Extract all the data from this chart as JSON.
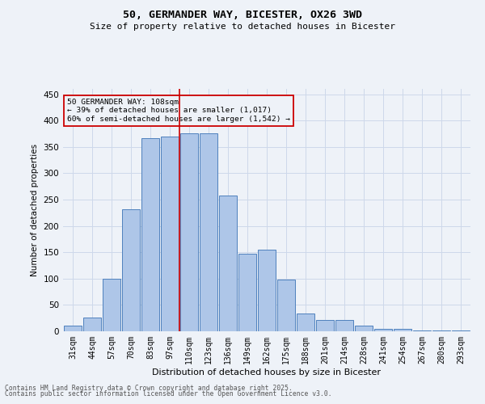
{
  "title_line1": "50, GERMANDER WAY, BICESTER, OX26 3WD",
  "title_line2": "Size of property relative to detached houses in Bicester",
  "xlabel": "Distribution of detached houses by size in Bicester",
  "ylabel": "Number of detached properties",
  "categories": [
    "31sqm",
    "44sqm",
    "57sqm",
    "70sqm",
    "83sqm",
    "97sqm",
    "110sqm",
    "123sqm",
    "136sqm",
    "149sqm",
    "162sqm",
    "175sqm",
    "188sqm",
    "201sqm",
    "214sqm",
    "228sqm",
    "241sqm",
    "254sqm",
    "267sqm",
    "280sqm",
    "293sqm"
  ],
  "values": [
    10,
    26,
    100,
    232,
    367,
    370,
    375,
    375,
    258,
    147,
    155,
    98,
    33,
    21,
    21,
    10,
    5,
    4,
    1,
    2,
    2
  ],
  "bar_color": "#aec6e8",
  "bar_edge_color": "#4f81bd",
  "grid_color": "#cdd8ea",
  "background_color": "#eef2f8",
  "vline_color": "#cc0000",
  "vline_pos": 5.5,
  "annotation_text": "50 GERMANDER WAY: 108sqm\n← 39% of detached houses are smaller (1,017)\n60% of semi-detached houses are larger (1,542) →",
  "annotation_box_color": "#cc0000",
  "ylim": [
    0,
    460
  ],
  "yticks": [
    0,
    50,
    100,
    150,
    200,
    250,
    300,
    350,
    400,
    450
  ],
  "footer_line1": "Contains HM Land Registry data © Crown copyright and database right 2025.",
  "footer_line2": "Contains public sector information licensed under the Open Government Licence v3.0."
}
